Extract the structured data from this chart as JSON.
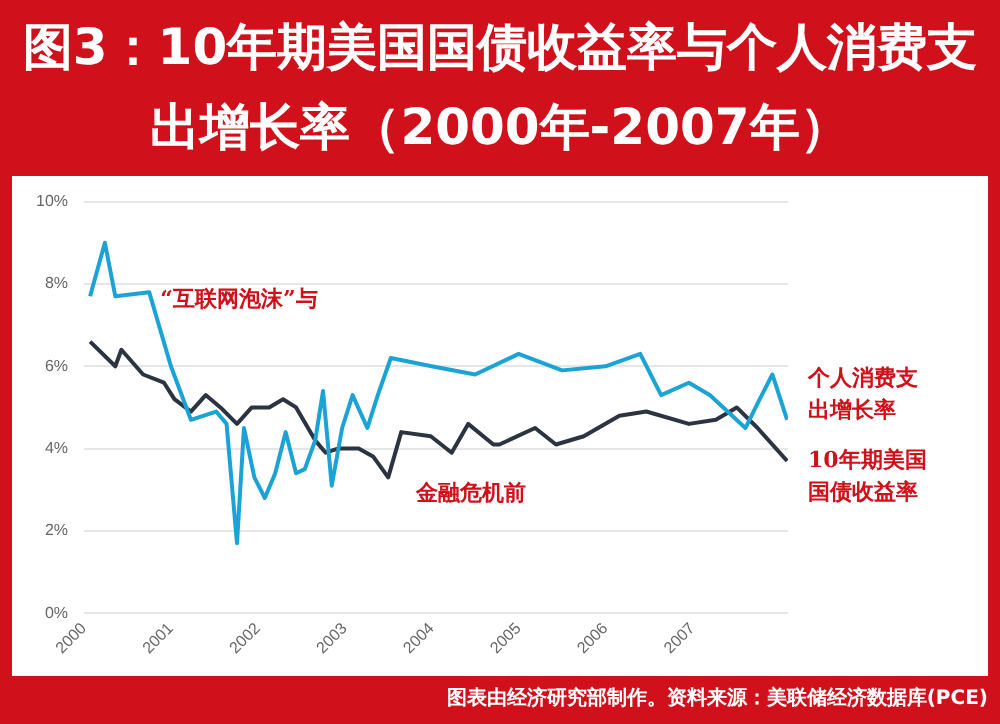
{
  "chart_data": {
    "type": "line",
    "title": "图3：10年期美国国债收益率与个人消费支出增长率（2000年-2007年）",
    "xlim": [
      2000,
      2008.1
    ],
    "xticks": [
      2000,
      2001,
      2002,
      2003,
      2004,
      2005,
      2006,
      2007
    ],
    "ylim": [
      0,
      10
    ],
    "yticks": [
      {
        "value": 0,
        "label": "0%"
      },
      {
        "value": 2,
        "label": "2%"
      },
      {
        "value": 4,
        "label": "4%"
      },
      {
        "value": 6,
        "label": "6%"
      },
      {
        "value": 8,
        "label": "8%"
      },
      {
        "value": 10,
        "label": "10%"
      }
    ],
    "grid": "y",
    "legend": false,
    "series": [
      {
        "name": "个人消费支出增长率",
        "color": "#1ba3d6",
        "x": [
          2000.07,
          2000.24,
          2000.36,
          2000.75,
          2001.0,
          2001.23,
          2001.52,
          2001.64,
          2001.76,
          2001.84,
          2001.96,
          2002.08,
          2002.2,
          2002.32,
          2002.44,
          2002.54,
          2002.66,
          2002.75,
          2002.85,
          2002.97,
          2003.09,
          2003.26,
          2003.38,
          2003.53,
          2004.0,
          2004.5,
          2005.0,
          2005.5,
          2006.0,
          2006.4,
          2006.64,
          2006.96,
          2007.2,
          2007.61,
          2007.75,
          2007.92,
          2008.09
        ],
        "values": [
          7.7,
          9.0,
          7.7,
          7.8,
          6.0,
          4.7,
          4.9,
          4.6,
          1.7,
          4.5,
          3.3,
          2.8,
          3.4,
          4.4,
          3.4,
          3.5,
          4.2,
          5.4,
          3.1,
          4.5,
          5.3,
          4.5,
          5.3,
          6.2,
          6.0,
          5.8,
          6.3,
          5.9,
          6.0,
          6.3,
          5.3,
          5.6,
          5.3,
          4.5,
          5.1,
          5.8,
          4.7
        ]
      },
      {
        "name": "10年期美国国债收益率",
        "color": "#2b3440",
        "x": [
          2000.07,
          2000.36,
          2000.43,
          2000.68,
          2000.92,
          2001.04,
          2001.23,
          2001.4,
          2001.57,
          2001.76,
          2001.93,
          2002.13,
          2002.29,
          2002.44,
          2002.66,
          2002.78,
          2002.92,
          2003.16,
          2003.33,
          2003.5,
          2003.65,
          2003.99,
          2004.23,
          2004.42,
          2004.71,
          2004.78,
          2005.19,
          2005.43,
          2005.75,
          2006.16,
          2006.47,
          2006.96,
          2007.27,
          2007.51,
          2007.75,
          2008.09
        ],
        "values": [
          6.6,
          6.0,
          6.4,
          5.8,
          5.6,
          5.2,
          4.9,
          5.3,
          5.0,
          4.6,
          5.0,
          5.0,
          5.2,
          5.0,
          4.2,
          3.9,
          4.0,
          4.0,
          3.8,
          3.3,
          4.4,
          4.3,
          3.9,
          4.6,
          4.1,
          4.1,
          4.5,
          4.1,
          4.3,
          4.8,
          4.9,
          4.6,
          4.7,
          5.0,
          4.5,
          3.7
        ]
      }
    ],
    "annotations": [
      "“互联网泡沫”与",
      "金融危机前",
      "图表由经济研究部制作。资料来源：美联储经济数据库(PCE)"
    ]
  }
}
